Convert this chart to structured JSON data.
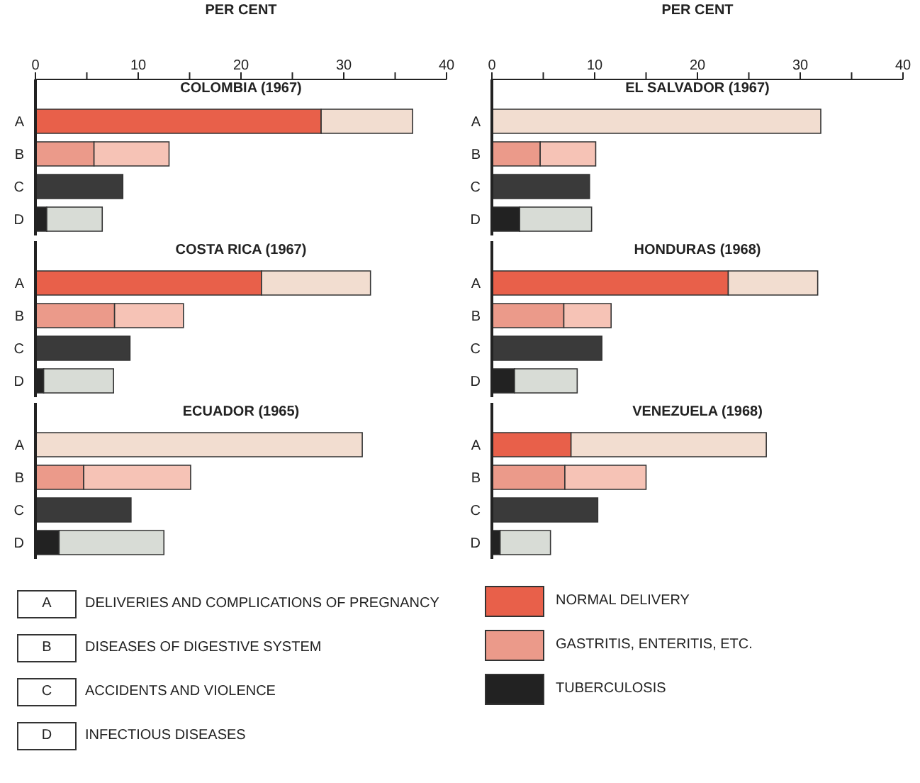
{
  "chart_data": [
    {
      "type": "bar",
      "orientation": "horizontal",
      "stacked": true,
      "title": "COLOMBIA (1967)",
      "xlabel": "PER CENT",
      "categories": [
        "A",
        "B",
        "C",
        "D"
      ],
      "xlim": [
        0,
        40
      ],
      "xticks": [
        0,
        {
          "value": 5,
          "label": null
        },
        10,
        {
          "value": 15,
          "label": null
        },
        20,
        {
          "value": 25,
          "label": null
        },
        30,
        {
          "value": 35,
          "label": null
        },
        40
      ],
      "legend": false,
      "series": [
        {
          "color": "#e8604a",
          "values": [
            27.8,
            null,
            null,
            null
          ]
        },
        {
          "color": "#eb9a8a",
          "values": [
            null,
            5.7,
            null,
            null
          ]
        },
        {
          "color": "#222222",
          "values": [
            null,
            null,
            null,
            1.1
          ]
        },
        {
          "colors": [
            "#f2ddd0",
            "#f6c3b6",
            "#3a3a3a",
            "#d8dcd6"
          ],
          "values": [
            8.9,
            7.3,
            8.5,
            5.4
          ]
        }
      ]
    },
    {
      "type": "bar",
      "orientation": "horizontal",
      "stacked": true,
      "title": "EL SALVADOR (1967)",
      "xlabel": "PER CENT",
      "categories": [
        "A",
        "B",
        "C",
        "D"
      ],
      "xlim": [
        0,
        40
      ],
      "xticks": [
        0,
        {
          "value": 5,
          "label": null
        },
        10,
        {
          "value": 15,
          "label": null
        },
        20,
        {
          "value": 25,
          "label": null
        },
        30,
        {
          "value": 35,
          "label": null
        },
        40
      ],
      "legend": false,
      "series": [
        {
          "color": "#e8604a",
          "values": [
            null,
            null,
            null,
            null
          ]
        },
        {
          "color": "#eb9a8a",
          "values": [
            null,
            4.7,
            null,
            null
          ]
        },
        {
          "color": "#222222",
          "values": [
            null,
            null,
            null,
            2.7
          ]
        },
        {
          "colors": [
            "#f2ddd0",
            "#f6c3b6",
            "#3a3a3a",
            "#d8dcd6"
          ],
          "values": [
            32.0,
            5.4,
            9.5,
            7.0
          ]
        }
      ]
    },
    {
      "type": "bar",
      "orientation": "horizontal",
      "stacked": true,
      "title": "COSTA RICA (1967)",
      "categories": [
        "A",
        "B",
        "C",
        "D"
      ],
      "xlim": [
        0,
        40
      ],
      "tick_labels": "y",
      "legend": false,
      "series": [
        {
          "color": "#e8604a",
          "values": [
            22.0,
            null,
            null,
            null
          ]
        },
        {
          "color": "#eb9a8a",
          "values": [
            null,
            7.7,
            null,
            null
          ]
        },
        {
          "color": "#222222",
          "values": [
            null,
            null,
            null,
            0.8
          ]
        },
        {
          "colors": [
            "#f2ddd0",
            "#f6c3b6",
            "#3a3a3a",
            "#d8dcd6"
          ],
          "values": [
            10.6,
            6.7,
            9.2,
            6.8
          ]
        }
      ]
    },
    {
      "type": "bar",
      "orientation": "horizontal",
      "stacked": true,
      "title": "HONDURAS (1968)",
      "categories": [
        "A",
        "B",
        "C",
        "D"
      ],
      "xlim": [
        0,
        40
      ],
      "tick_labels": "y",
      "legend": false,
      "series": [
        {
          "color": "#e8604a",
          "values": [
            23.0,
            null,
            null,
            null
          ]
        },
        {
          "color": "#eb9a8a",
          "values": [
            null,
            7.0,
            null,
            null
          ]
        },
        {
          "color": "#222222",
          "values": [
            null,
            null,
            null,
            2.2
          ]
        },
        {
          "colors": [
            "#f2ddd0",
            "#f6c3b6",
            "#3a3a3a",
            "#d8dcd6"
          ],
          "values": [
            8.7,
            4.6,
            10.7,
            6.1
          ]
        }
      ]
    },
    {
      "type": "bar",
      "orientation": "horizontal",
      "stacked": true,
      "title": "ECUADOR (1965)",
      "categories": [
        "A",
        "B",
        "C",
        "D"
      ],
      "xlim": [
        0,
        40
      ],
      "tick_labels": "y",
      "legend": false,
      "series": [
        {
          "color": "#e8604a",
          "values": [
            null,
            null,
            null,
            null
          ]
        },
        {
          "color": "#eb9a8a",
          "values": [
            null,
            4.7,
            null,
            null
          ]
        },
        {
          "color": "#222222",
          "values": [
            null,
            null,
            null,
            2.3
          ]
        },
        {
          "colors": [
            "#f2ddd0",
            "#f6c3b6",
            "#3a3a3a",
            "#d8dcd6"
          ],
          "values": [
            31.8,
            10.4,
            9.3,
            10.2
          ]
        }
      ]
    },
    {
      "type": "bar",
      "orientation": "horizontal",
      "stacked": true,
      "title": "VENEZUELA (1968)",
      "categories": [
        "A",
        "B",
        "C",
        "D"
      ],
      "xlim": [
        0,
        40
      ],
      "tick_labels": "y",
      "legend": "bottom",
      "series": [
        {
          "name": "NORMAL DELIVERY",
          "color": "#e8604a",
          "values": [
            7.7,
            null,
            null,
            null
          ]
        },
        {
          "name": "GASTRITIS, ENTERITIS, ETC.",
          "color": "#eb9a8a",
          "values": [
            null,
            7.1,
            null,
            null
          ]
        },
        {
          "name": "TUBERCULOSIS",
          "color": "#222222",
          "values": [
            null,
            null,
            null,
            0.8
          ]
        },
        {
          "colors": [
            "#f2ddd0",
            "#f6c3b6",
            "#3a3a3a",
            "#d8dcd6"
          ],
          "values": [
            19.0,
            7.9,
            10.3,
            4.9
          ]
        }
      ]
    },
    {
      "type": "other",
      "annotations": [
        "A",
        "DELIVERIES AND COMPLICATIONS OF PREGNANCY",
        "B",
        "DISEASES OF DIGESTIVE SYSTEM",
        "C",
        "ACCIDENTS AND VIOLENCE",
        "D",
        "INFECTIOUS DISEASES"
      ]
    }
  ]
}
